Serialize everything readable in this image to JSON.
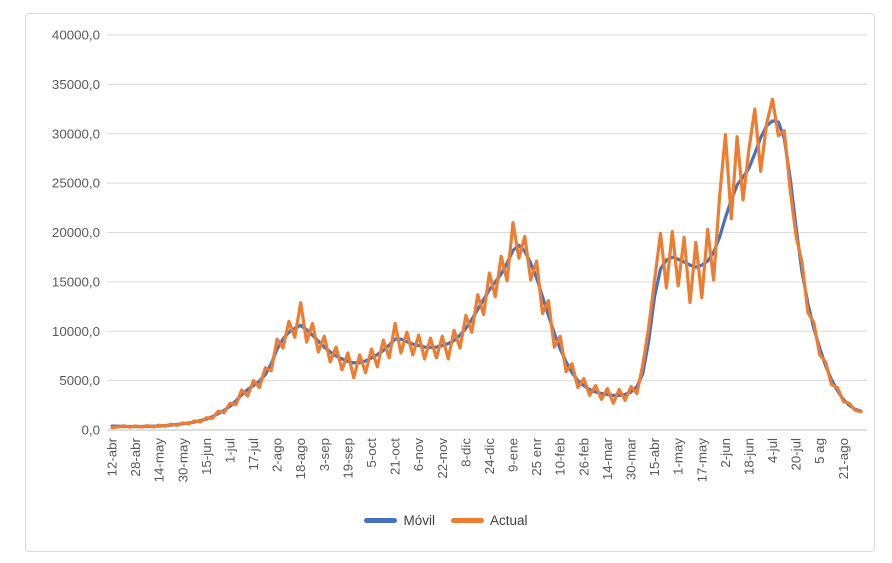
{
  "chart": {
    "background": "#FFFFFF",
    "border_color": "#D9D9D9",
    "grid_color": "#D9D9D9",
    "axis_color": "#BFBFBF",
    "tick_label_color": "#595959",
    "legend_text_color": "#404040"
  },
  "legend": {
    "items": [
      {
        "id": "movil",
        "label": "Móvil",
        "color": "#4472C4"
      },
      {
        "id": "actual",
        "label": "Actual",
        "color": "#ED7D31"
      }
    ]
  },
  "chart_data": {
    "type": "line",
    "title": "",
    "xlabel": "",
    "ylabel": "",
    "grid": true,
    "legend_position": "bottom",
    "ylim": [
      0,
      40000
    ],
    "y_tick_step": 5000,
    "y_tick_values": [
      0,
      5000,
      10000,
      15000,
      20000,
      25000,
      30000,
      35000,
      40000
    ],
    "y_tick_labels": [
      "0,0",
      "5000,0",
      "10000,0",
      "15000,0",
      "20000,0",
      "25000,0",
      "30000,0",
      "35000,0",
      "40000,0"
    ],
    "x_tick_interval_days": 16,
    "x_tick_labels": [
      "12-abr",
      "28-abr",
      "14-may",
      "30-may",
      "15-jun",
      "1-jul",
      "17-jul",
      "2-ago",
      "18-ago",
      "3-sep",
      "19-sep",
      "5-oct",
      "21-oct",
      "6-nov",
      "22-nov",
      "8-dic",
      "24-dic",
      "9-ene",
      "25 enr",
      "10-feb",
      "26-feb",
      "14-mar",
      "30-mar",
      "15-abr",
      "1-may",
      "17-may",
      "2-jun",
      "18-jun",
      "4-jul",
      "20-jul",
      "5 ag",
      "21-ago"
    ],
    "x_days": [
      0,
      4,
      8,
      12,
      16,
      20,
      24,
      28,
      32,
      36,
      40,
      44,
      48,
      52,
      56,
      60,
      64,
      68,
      72,
      76,
      80,
      84,
      88,
      92,
      96,
      100,
      104,
      108,
      112,
      116,
      120,
      124,
      128,
      132,
      136,
      140,
      144,
      148,
      152,
      156,
      160,
      164,
      168,
      172,
      176,
      180,
      184,
      188,
      192,
      196,
      200,
      204,
      208,
      212,
      216,
      220,
      224,
      228,
      232,
      236,
      240,
      244,
      248,
      252,
      256,
      260,
      264,
      268,
      272,
      276,
      280,
      284,
      288,
      292,
      296,
      300,
      304,
      308,
      312,
      316,
      320,
      324,
      328,
      332,
      336,
      340,
      344,
      348,
      352,
      356,
      360,
      364,
      368,
      372,
      376,
      380,
      384,
      388,
      392,
      396,
      400,
      404,
      408,
      412,
      416,
      420,
      424,
      428,
      432,
      436,
      440,
      444,
      448,
      452,
      456,
      460,
      464,
      468,
      472,
      476,
      480,
      484,
      488,
      492,
      496,
      500,
      504,
      508
    ],
    "x_domain_days": [
      0,
      508
    ],
    "series": [
      {
        "name": "Móvil",
        "color": "#4472C4",
        "values": [
          400,
          380,
          360,
          350,
          350,
          350,
          360,
          380,
          410,
          450,
          500,
          560,
          630,
          710,
          810,
          950,
          1100,
          1350,
          1650,
          2000,
          2400,
          2950,
          3550,
          4100,
          4500,
          4950,
          5600,
          6700,
          8200,
          9200,
          9900,
          10300,
          10600,
          10150,
          9600,
          9000,
          8400,
          7900,
          7500,
          7200,
          6950,
          6800,
          6850,
          7000,
          7300,
          7650,
          8050,
          8600,
          9200,
          9200,
          8950,
          8700,
          8550,
          8400,
          8350,
          8400,
          8550,
          8750,
          9050,
          9600,
          10300,
          11200,
          12200,
          13200,
          14200,
          15000,
          15800,
          16900,
          18200,
          18700,
          18100,
          16900,
          15400,
          13500,
          11600,
          9800,
          8200,
          6900,
          5800,
          5000,
          4500,
          4100,
          3850,
          3700,
          3600,
          3500,
          3500,
          3600,
          3850,
          4400,
          5700,
          9000,
          13500,
          16300,
          17200,
          17500,
          17300,
          17000,
          16700,
          16500,
          16700,
          17100,
          18000,
          19500,
          21500,
          23300,
          24800,
          25600,
          26500,
          28000,
          29600,
          30800,
          31300,
          31200,
          29500,
          25500,
          20500,
          16000,
          12800,
          10300,
          8300,
          6500,
          5100,
          4000,
          3100,
          2500,
          2100,
          1900
        ]
      },
      {
        "name": "Actual",
        "color": "#ED7D31",
        "values": [
          250,
          300,
          430,
          280,
          420,
          300,
          440,
          320,
          490,
          380,
          590,
          480,
          720,
          620,
          920,
          820,
          1250,
          1180,
          1900,
          1750,
          2700,
          2550,
          4050,
          3450,
          5000,
          4300,
          6300,
          6000,
          9200,
          8300,
          11000,
          9400,
          12900,
          8900,
          10800,
          7900,
          9500,
          6900,
          8400,
          6100,
          7800,
          5300,
          7600,
          5800,
          8200,
          6400,
          9100,
          7300,
          10800,
          7800,
          9900,
          7600,
          9600,
          7200,
          9300,
          7300,
          9500,
          7200,
          10100,
          8300,
          11600,
          9900,
          13700,
          11700,
          15900,
          13500,
          17600,
          15100,
          21000,
          17400,
          19600,
          15200,
          17100,
          11800,
          13100,
          8400,
          9500,
          5900,
          6700,
          4300,
          5200,
          3500,
          4500,
          3100,
          4200,
          2700,
          4100,
          3000,
          4400,
          3700,
          6600,
          10400,
          15200,
          19900,
          14400,
          20100,
          14600,
          19500,
          12900,
          19000,
          13400,
          20300,
          15200,
          23500,
          29900,
          21400,
          29700,
          23300,
          28400,
          32500,
          26200,
          31000,
          33500,
          29800,
          30300,
          24300,
          19600,
          17000,
          11900,
          10900,
          7600,
          6900,
          4600,
          4300,
          2900,
          2700,
          2000,
          1850
        ]
      }
    ]
  }
}
